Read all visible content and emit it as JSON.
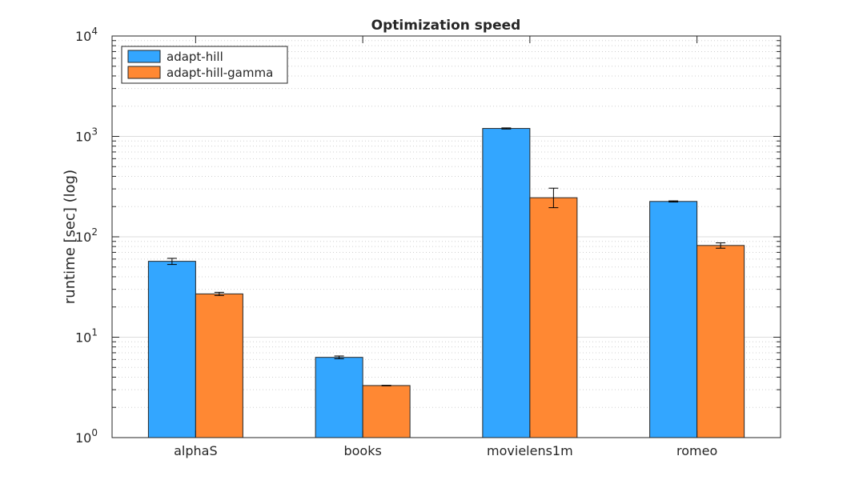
{
  "chart_data": {
    "type": "bar",
    "title": "Optimization speed",
    "xlabel": "",
    "ylabel": "runtime [sec] (log)",
    "yscale": "log",
    "ylim": [
      1,
      10000
    ],
    "y_ticks": [
      {
        "value": 1,
        "base": "10",
        "exp": "0"
      },
      {
        "value": 10,
        "base": "10",
        "exp": "1"
      },
      {
        "value": 100,
        "base": "10",
        "exp": "2"
      },
      {
        "value": 1000,
        "base": "10",
        "exp": "3"
      },
      {
        "value": 10000,
        "base": "10",
        "exp": "4"
      }
    ],
    "grid": true,
    "legend_position": "top-left",
    "categories": [
      "alphaS",
      "books",
      "movielens1m",
      "romeo"
    ],
    "series": [
      {
        "name": "adapt-hill",
        "color": "#33a6ff",
        "values": [
          57,
          6.3,
          1200,
          225
        ],
        "error_low": [
          53,
          6.1,
          1185,
          222
        ],
        "error_high": [
          61,
          6.5,
          1215,
          228
        ]
      },
      {
        "name": "adapt-hill-gamma",
        "color": "#ff8833",
        "values": [
          27,
          3.3,
          245,
          82
        ],
        "error_low": [
          26,
          3.28,
          195,
          77
        ],
        "error_high": [
          28,
          3.32,
          305,
          87
        ]
      }
    ]
  }
}
